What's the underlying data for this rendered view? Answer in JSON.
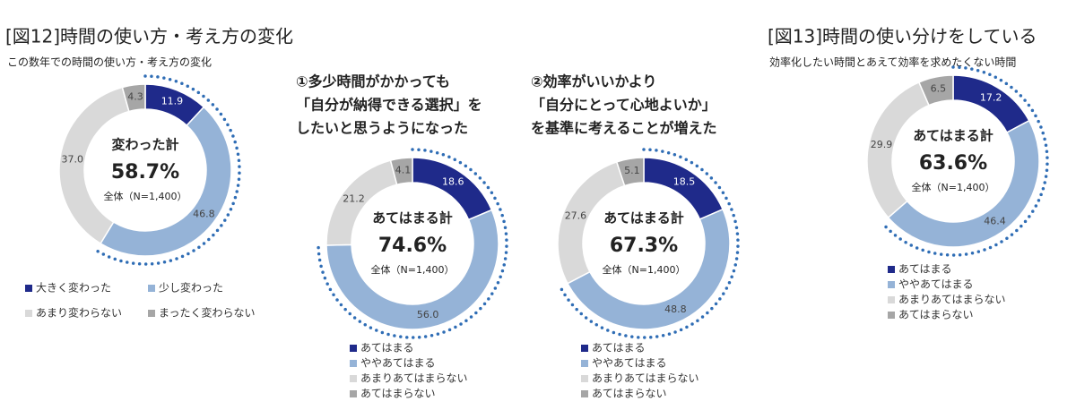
{
  "figures": [
    {
      "title": "[図12]時間の使い方・考え方の変化",
      "subtitle": "この数年での時間の使い方・考え方の変化"
    },
    {
      "title": "[図13]時間の使い分けをしている",
      "subtitle": "効率化したい時間とあえて効率を求めたくない時間"
    }
  ],
  "chart_data": [
    {
      "type": "pie",
      "categories": [
        "大きく変わった",
        "少し変わった",
        "あまり変わらない",
        "まったく変わらない"
      ],
      "values": [
        11.9,
        46.8,
        37.0,
        4.3
      ],
      "value_labels": [
        "11.9",
        "46.8",
        "37.0",
        "4.3"
      ],
      "colors": [
        "#1f2a8a",
        "#95b3d7",
        "#d9d9d9",
        "#a6a6a6"
      ],
      "center_label": "変わった計",
      "total": 58.7,
      "total_label": "58.7%",
      "base_label": "全体（N=1,400）"
    },
    {
      "type": "pie",
      "title_lines": [
        "①多少時間がかかっても",
        "「自分が納得できる選択」を",
        "したいと思うようになった"
      ],
      "categories": [
        "あてはまる",
        "ややあてはまる",
        "あまりあてはまらない",
        "あてはまらない"
      ],
      "values": [
        18.6,
        56.0,
        21.2,
        4.1
      ],
      "value_labels": [
        "18.6",
        "56.0",
        "21.2",
        "4.1"
      ],
      "colors": [
        "#1f2a8a",
        "#95b3d7",
        "#d9d9d9",
        "#a6a6a6"
      ],
      "center_label": "あてはまる計",
      "total": 74.6,
      "total_label": "74.6%",
      "base_label": "全体（N=1,400）"
    },
    {
      "type": "pie",
      "title_lines": [
        "②効率がいいかより",
        "「自分にとって心地よいか」",
        "を基準に考えることが増えた"
      ],
      "categories": [
        "あてはまる",
        "ややあてはまる",
        "あまりあてはまらない",
        "あてはまらない"
      ],
      "values": [
        18.5,
        48.8,
        27.6,
        5.1
      ],
      "value_labels": [
        "18.5",
        "48.8",
        "27.6",
        "5.1"
      ],
      "colors": [
        "#1f2a8a",
        "#95b3d7",
        "#d9d9d9",
        "#a6a6a6"
      ],
      "center_label": "あてはまる計",
      "total": 67.3,
      "total_label": "67.3%",
      "base_label": "全体（N=1,400）"
    },
    {
      "type": "pie",
      "categories": [
        "あてはまる",
        "ややあてはまる",
        "あまりあてはまらない",
        "あてはまらない"
      ],
      "values": [
        17.2,
        46.4,
        29.9,
        6.5
      ],
      "value_labels": [
        "17.2",
        "46.4",
        "29.9",
        "6.5"
      ],
      "colors": [
        "#1f2a8a",
        "#95b3d7",
        "#d9d9d9",
        "#a6a6a6"
      ],
      "center_label": "あてはまる計",
      "total": 63.6,
      "total_label": "63.6%",
      "base_label": "全体（N=1,400）"
    }
  ]
}
